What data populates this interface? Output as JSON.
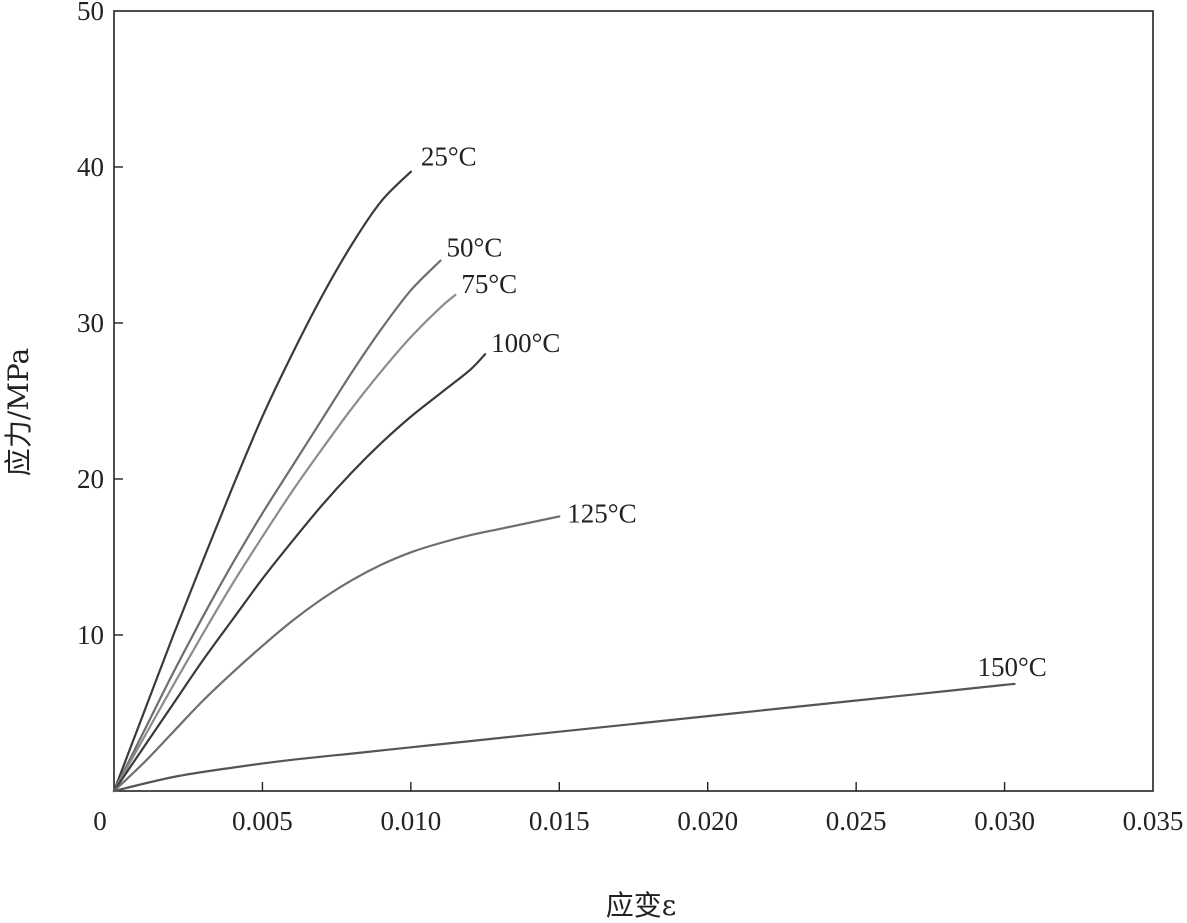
{
  "chart_data": {
    "type": "line",
    "xlabel": "应变ε",
    "ylabel": "应力/MPa",
    "xlim": [
      0,
      0.035
    ],
    "ylim": [
      0,
      50
    ],
    "x_ticks": [
      0,
      0.005,
      0.01,
      0.015,
      0.02,
      0.025,
      0.03,
      0.035
    ],
    "x_tick_labels": [
      "0",
      "0.005",
      "0.010",
      "0.015",
      "0.020",
      "0.025",
      "0.030",
      "0.035"
    ],
    "y_ticks": [
      10,
      20,
      30,
      40,
      50
    ],
    "y_tick_labels": [
      "10",
      "20",
      "30",
      "40",
      "50"
    ],
    "grid": false,
    "legend": "inline labels at curve ends",
    "series": [
      {
        "name": "25°C",
        "color": "#3a3a3a",
        "x": [
          0,
          0.001,
          0.002,
          0.003,
          0.004,
          0.005,
          0.006,
          0.007,
          0.008,
          0.009,
          0.01
        ],
        "y": [
          0,
          5.0,
          10.0,
          14.8,
          19.5,
          24.0,
          28.0,
          31.7,
          35.0,
          37.8,
          39.7
        ]
      },
      {
        "name": "50°C",
        "color": "#6e6e6e",
        "x": [
          0,
          0.001,
          0.002,
          0.003,
          0.004,
          0.005,
          0.006,
          0.007,
          0.008,
          0.009,
          0.01,
          0.011
        ],
        "y": [
          0,
          3.8,
          7.6,
          11.2,
          14.6,
          17.8,
          20.8,
          23.8,
          26.8,
          29.6,
          32.1,
          34.0
        ]
      },
      {
        "name": "75°C",
        "color": "#8c8c8c",
        "x": [
          0,
          0.001,
          0.002,
          0.003,
          0.004,
          0.005,
          0.006,
          0.007,
          0.008,
          0.009,
          0.01,
          0.011,
          0.0115
        ],
        "y": [
          0,
          3.4,
          6.8,
          10.1,
          13.3,
          16.3,
          19.2,
          21.9,
          24.5,
          26.9,
          29.1,
          31.0,
          31.8
        ]
      },
      {
        "name": "100°C",
        "color": "#3a3a3a",
        "x": [
          0,
          0.001,
          0.002,
          0.003,
          0.004,
          0.005,
          0.006,
          0.007,
          0.008,
          0.009,
          0.01,
          0.011,
          0.012,
          0.0125
        ],
        "y": [
          0,
          2.8,
          5.6,
          8.4,
          11.0,
          13.6,
          16.0,
          18.3,
          20.4,
          22.3,
          24.0,
          25.5,
          27.0,
          28.0
        ]
      },
      {
        "name": "125°C",
        "color": "#6e6e6e",
        "x": [
          0,
          0.001,
          0.002,
          0.003,
          0.004,
          0.005,
          0.006,
          0.007,
          0.008,
          0.009,
          0.01,
          0.011,
          0.012,
          0.013,
          0.014,
          0.015
        ],
        "y": [
          0,
          1.8,
          3.8,
          5.8,
          7.6,
          9.3,
          10.9,
          12.3,
          13.5,
          14.5,
          15.3,
          15.9,
          16.4,
          16.8,
          17.2,
          17.6
        ]
      },
      {
        "name": "150°C",
        "color": "#555555",
        "x": [
          0,
          0.002,
          0.004,
          0.006,
          0.008,
          0.01,
          0.012,
          0.015,
          0.018,
          0.021,
          0.024,
          0.027,
          0.03,
          0.0303
        ],
        "y": [
          0,
          0.9,
          1.5,
          2.0,
          2.4,
          2.8,
          3.2,
          3.8,
          4.4,
          5.0,
          5.6,
          6.2,
          6.8,
          6.85
        ]
      }
    ]
  }
}
